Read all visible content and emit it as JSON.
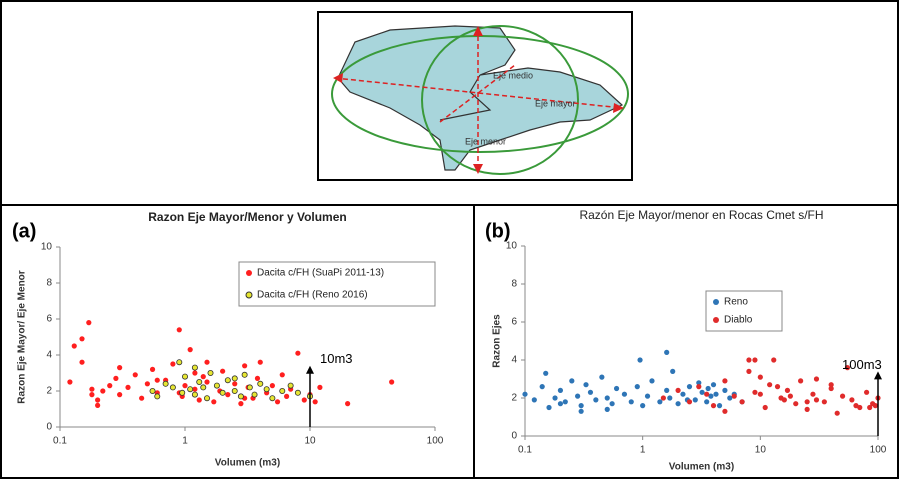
{
  "diagram": {
    "labels": [
      "Eje medio",
      "Eje mayor",
      "Eje menor"
    ]
  },
  "chart_data": [
    {
      "type": "scatter",
      "panel_label": "(a)",
      "title": "Razon Eje Mayor/Menor y Volumen",
      "x_label": "Volumen (m3)",
      "y_label": "Razon Eje Mayor/ Eje Menor",
      "log_x": true,
      "grid": false,
      "legend": "upper right",
      "xlim": [
        0.1,
        100
      ],
      "xticks": [
        0.1,
        1,
        10,
        100
      ],
      "ylim": [
        0,
        10
      ],
      "yticks": [
        0,
        2,
        4,
        6,
        8,
        10
      ],
      "annotation": {
        "text": "10m3",
        "x": 10,
        "y": 3.4
      },
      "series": [
        {
          "name": "Dacita c/FH (SuaPi 2011-13)",
          "color": "#ff1f1f",
          "x": [
            0.12,
            0.13,
            0.15,
            0.17,
            0.18,
            0.2,
            0.22,
            0.25,
            0.28,
            0.3,
            0.35,
            0.4,
            0.45,
            0.5,
            0.55,
            0.6,
            0.7,
            0.8,
            0.9,
            0.95,
            1,
            1.1,
            1.2,
            1.3,
            1.4,
            1.5,
            1.7,
            1.9,
            2,
            2.2,
            2.5,
            2.8,
            3,
            3.2,
            3.5,
            3.8,
            4,
            4.5,
            5,
            5.5,
            6,
            6.5,
            7,
            8,
            9,
            10,
            11,
            12,
            20,
            45,
            0.15,
            0.18,
            0.3,
            0.6,
            1.2,
            2.5,
            0.2,
            0.9,
            1.5,
            3
          ],
          "values": [
            2.5,
            4.5,
            4.9,
            5.8,
            2.1,
            1.5,
            2.0,
            2.3,
            2.7,
            1.8,
            2.2,
            2.9,
            1.6,
            2.4,
            3.2,
            1.9,
            2.6,
            3.5,
            5.4,
            1.7,
            2.3,
            4.3,
            2.1,
            1.5,
            2.8,
            3.6,
            1.4,
            2.0,
            3.1,
            1.8,
            2.4,
            1.3,
            3.4,
            2.2,
            1.6,
            2.7,
            3.6,
            1.9,
            2.3,
            1.4,
            2.9,
            1.7,
            2.1,
            4.1,
            1.5,
            1.8,
            1.4,
            2.2,
            1.3,
            2.5,
            3.6,
            1.8,
            3.3,
            2.6,
            3.0,
            2.0,
            1.2,
            1.9,
            2.5,
            1.6
          ]
        },
        {
          "name": "Dacita c/FH (Reno 2016)",
          "color": "#e6e632",
          "x": [
            0.55,
            0.6,
            0.7,
            0.8,
            0.9,
            0.95,
            1,
            1.1,
            1.2,
            1.3,
            1.4,
            1.5,
            1.6,
            1.8,
            2,
            2.2,
            2.5,
            2.8,
            3,
            3.3,
            3.6,
            4,
            4.5,
            5,
            6,
            7,
            8,
            10,
            1.2,
            2.5
          ],
          "values": [
            2.0,
            1.7,
            2.4,
            2.2,
            3.6,
            1.9,
            2.8,
            2.1,
            1.8,
            2.5,
            2.2,
            1.6,
            3.0,
            2.3,
            1.9,
            2.6,
            2.0,
            1.7,
            2.9,
            2.2,
            1.8,
            2.4,
            2.1,
            1.6,
            2.0,
            2.3,
            1.9,
            1.7,
            3.3,
            2.7
          ]
        }
      ]
    },
    {
      "type": "scatter",
      "panel_label": "(b)",
      "title": "Razón Eje Mayor/menor en Rocas Cmet s/FH",
      "x_label": "Volumen (m3)",
      "y_label": "Razon Ejes",
      "log_x": true,
      "grid": false,
      "legend": "center right",
      "xlim": [
        0.1,
        100
      ],
      "xticks": [
        0.1,
        1,
        10,
        100
      ],
      "ylim": [
        0,
        10
      ],
      "yticks": [
        0,
        2,
        4,
        6,
        8,
        10
      ],
      "annotation": {
        "text": "100m3",
        "x": 100,
        "y": 3.4
      },
      "series": [
        {
          "name": "Reno",
          "color": "#2e75b6",
          "x": [
            0.1,
            0.12,
            0.14,
            0.15,
            0.16,
            0.18,
            0.2,
            0.22,
            0.25,
            0.28,
            0.3,
            0.33,
            0.36,
            0.4,
            0.45,
            0.5,
            0.55,
            0.6,
            0.7,
            0.8,
            0.9,
            1,
            1.1,
            1.2,
            1.4,
            1.6,
            1.7,
            1.8,
            2,
            2.2,
            2.5,
            2.8,
            3,
            3.2,
            3.5,
            3.8,
            4,
            4.5,
            5,
            5.5,
            6,
            7,
            0.95,
            1.6,
            0.3,
            0.5,
            2.4,
            3.6,
            4.2,
            0.2
          ],
          "values": [
            2.2,
            1.9,
            2.6,
            3.3,
            1.5,
            2.0,
            2.4,
            1.8,
            2.9,
            2.1,
            1.6,
            2.7,
            2.3,
            1.9,
            3.1,
            2.0,
            1.7,
            2.5,
            2.2,
            1.8,
            2.6,
            1.6,
            2.1,
            2.9,
            1.8,
            2.4,
            2.0,
            3.4,
            1.7,
            2.2,
            2.6,
            1.9,
            2.8,
            2.3,
            1.8,
            2.1,
            2.7,
            1.6,
            2.4,
            2.0,
            2.2,
            1.8,
            4.0,
            4.4,
            1.3,
            1.4,
            1.9,
            2.5,
            2.2,
            1.7
          ]
        },
        {
          "name": "Diablo",
          "color": "#e02b2b",
          "x": [
            1.5,
            2,
            2.5,
            3,
            3.5,
            4,
            5,
            6,
            7,
            8,
            9,
            10,
            11,
            12,
            13,
            15,
            17,
            20,
            22,
            25,
            28,
            30,
            35,
            40,
            45,
            50,
            55,
            60,
            70,
            80,
            90,
            100,
            95,
            85,
            8,
            10,
            14,
            16,
            9,
            25,
            40,
            65,
            5,
            18,
            30
          ],
          "values": [
            2.0,
            2.4,
            1.8,
            2.6,
            2.2,
            1.6,
            2.9,
            2.1,
            1.8,
            3.4,
            4.0,
            2.2,
            1.5,
            2.7,
            4.0,
            2.0,
            2.4,
            1.7,
            2.9,
            1.4,
            2.2,
            3.0,
            1.8,
            2.5,
            1.2,
            2.1,
            3.6,
            1.9,
            1.5,
            2.3,
            1.7,
            2.0,
            1.6,
            1.5,
            4.0,
            3.1,
            2.6,
            1.9,
            2.3,
            1.8,
            2.7,
            1.6,
            1.3,
            2.1,
            1.9
          ]
        }
      ]
    }
  ]
}
